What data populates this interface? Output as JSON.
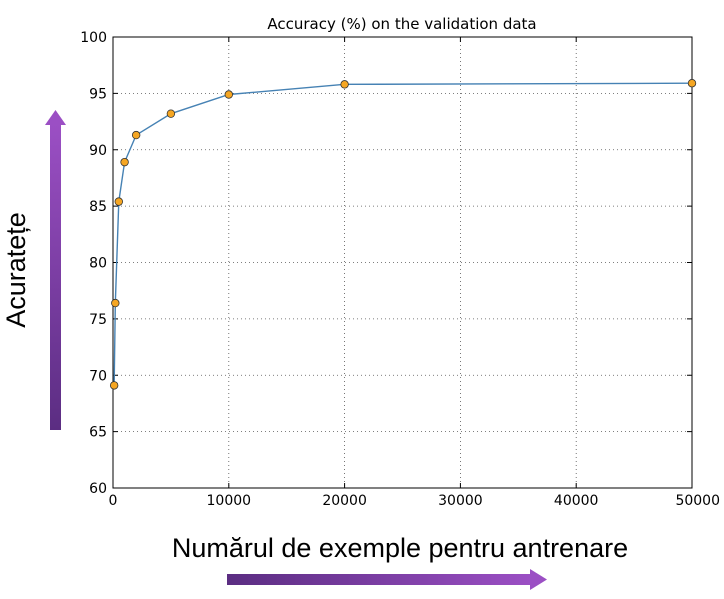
{
  "chart_data": {
    "type": "line",
    "title": "Accuracy (%) on the validation data",
    "xlabel": "Numărul de exemple pentru antrenare",
    "ylabel": "Acuratețe",
    "xlim": [
      0,
      50000
    ],
    "ylim": [
      60,
      100
    ],
    "xticks": [
      0,
      10000,
      20000,
      30000,
      40000,
      50000
    ],
    "yticks": [
      60,
      65,
      70,
      75,
      80,
      85,
      90,
      95,
      100
    ],
    "grid": true,
    "line_color": "#4682b4",
    "marker_color": "#f5a623",
    "arrow_color": "#7b3fa0",
    "series": [
      {
        "x": [
          100,
          200,
          500,
          1000,
          2000,
          5000,
          10000,
          20000,
          50000
        ],
        "y": [
          69.1,
          76.4,
          85.4,
          88.9,
          91.3,
          93.2,
          94.9,
          95.8,
          95.9
        ]
      }
    ]
  }
}
